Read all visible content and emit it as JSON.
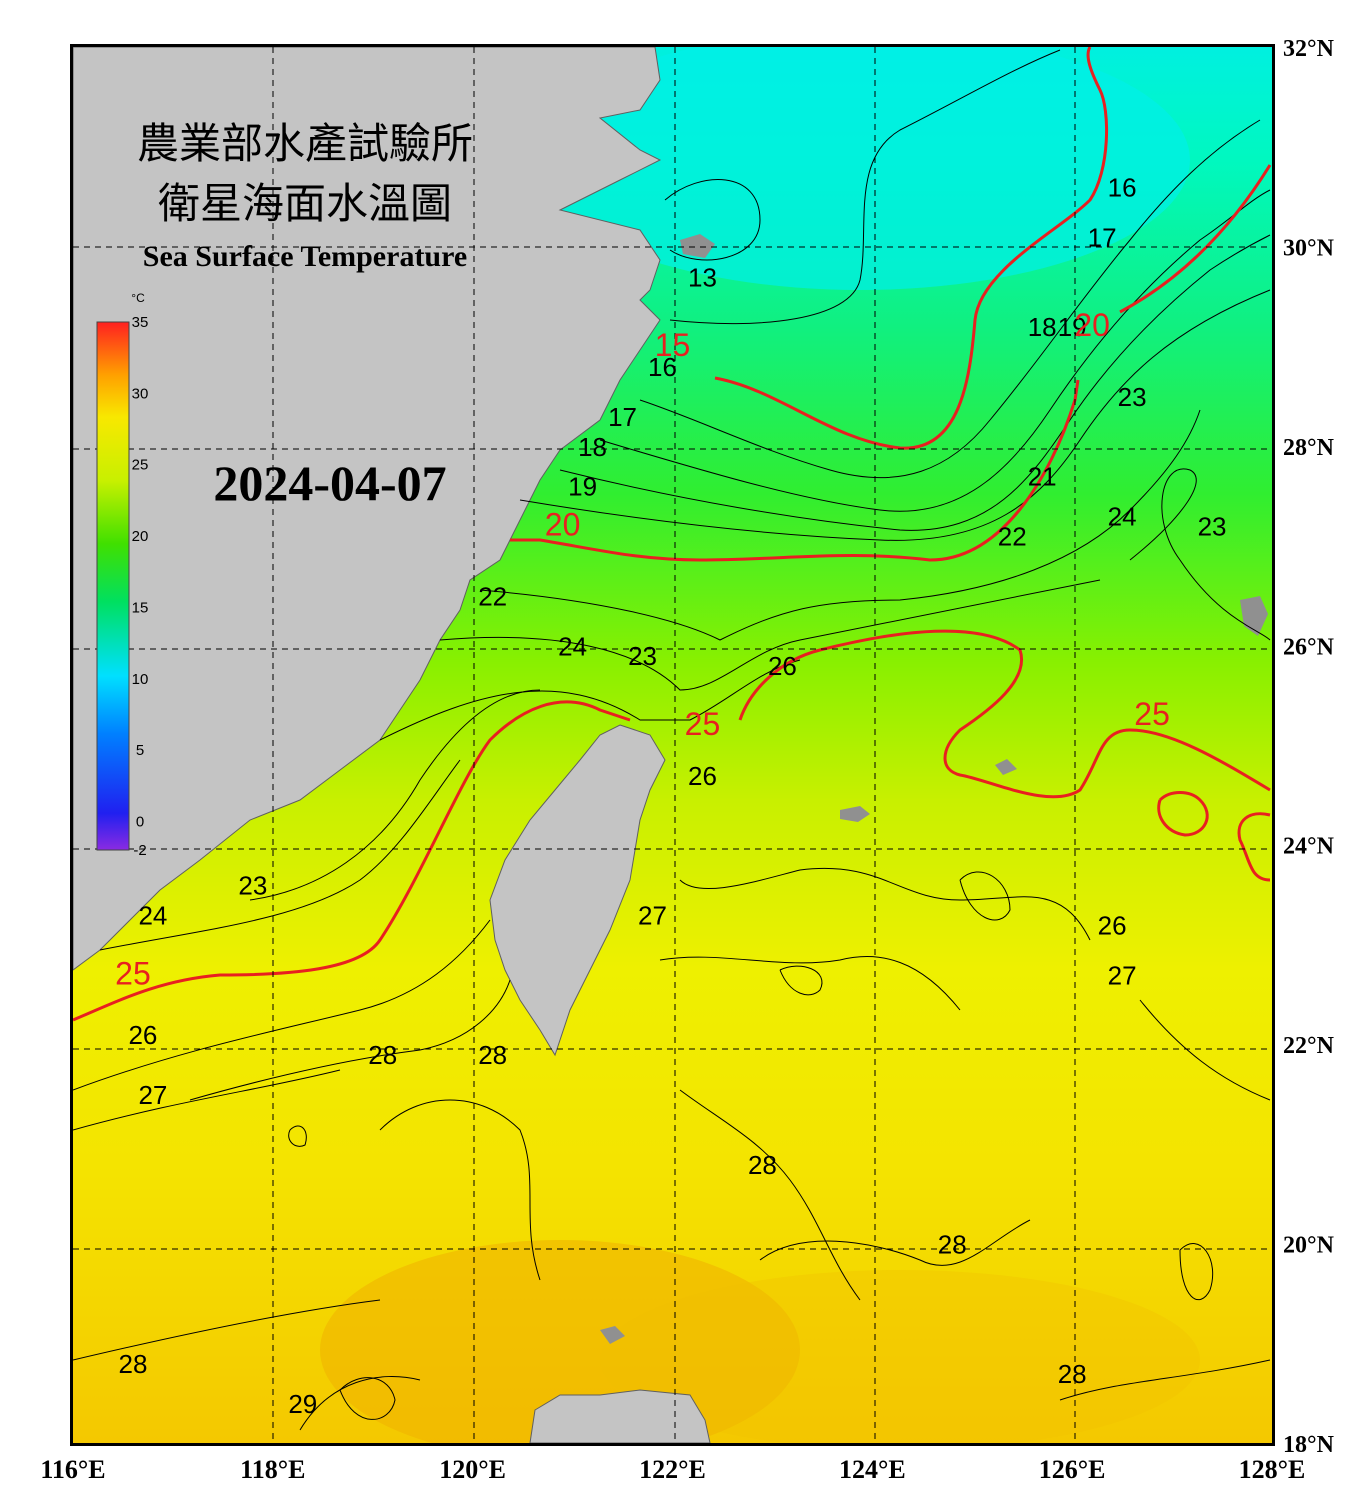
{
  "title": {
    "line1": "農業部水產試驗所",
    "line2": "衛星海面水溫圖",
    "english": "Sea Surface Temperature"
  },
  "date": "2024-04-07",
  "colorbar": {
    "unit": "°C",
    "ticks": [
      "35",
      "30",
      "25",
      "20",
      "15",
      "10",
      "5",
      "0",
      "-2"
    ]
  },
  "axes": {
    "longitude_labels": [
      "116°E",
      "118°E",
      "120°E",
      "122°E",
      "124°E",
      "126°E",
      "128°E"
    ],
    "latitude_labels": [
      "32°N",
      "30°N",
      "28°N",
      "26°N",
      "24°N",
      "22°N",
      "20°N",
      "18°N"
    ]
  },
  "contour_labels": {
    "black": [
      {
        "text": "13",
        "lon": 122.3,
        "lat": 29.6
      },
      {
        "text": "16",
        "lon": 121.9,
        "lat": 28.7
      },
      {
        "text": "17",
        "lon": 121.5,
        "lat": 28.2
      },
      {
        "text": "18",
        "lon": 121.2,
        "lat": 27.9
      },
      {
        "text": "19",
        "lon": 121.1,
        "lat": 27.5
      },
      {
        "text": "22",
        "lon": 120.2,
        "lat": 26.4
      },
      {
        "text": "24",
        "lon": 121.0,
        "lat": 25.9
      },
      {
        "text": "23",
        "lon": 121.7,
        "lat": 25.8
      },
      {
        "text": "26",
        "lon": 123.1,
        "lat": 25.7
      },
      {
        "text": "26",
        "lon": 122.3,
        "lat": 24.6
      },
      {
        "text": "27",
        "lon": 121.8,
        "lat": 23.2
      },
      {
        "text": "23",
        "lon": 117.8,
        "lat": 23.5
      },
      {
        "text": "24",
        "lon": 116.8,
        "lat": 23.2
      },
      {
        "text": "26",
        "lon": 116.7,
        "lat": 22.0
      },
      {
        "text": "27",
        "lon": 116.8,
        "lat": 21.4
      },
      {
        "text": "28",
        "lon": 119.1,
        "lat": 21.8
      },
      {
        "text": "28",
        "lon": 120.2,
        "lat": 21.8
      },
      {
        "text": "28",
        "lon": 122.9,
        "lat": 20.7
      },
      {
        "text": "28",
        "lon": 124.8,
        "lat": 19.9
      },
      {
        "text": "28",
        "lon": 116.6,
        "lat": 18.7
      },
      {
        "text": "29",
        "lon": 118.3,
        "lat": 18.3
      },
      {
        "text": "28",
        "lon": 126.0,
        "lat": 18.6
      },
      {
        "text": "16",
        "lon": 126.5,
        "lat": 30.5
      },
      {
        "text": "17",
        "lon": 126.3,
        "lat": 30.0
      },
      {
        "text": "18",
        "lon": 125.7,
        "lat": 29.1
      },
      {
        "text": "19",
        "lon": 126.0,
        "lat": 29.1
      },
      {
        "text": "23",
        "lon": 126.6,
        "lat": 28.4
      },
      {
        "text": "21",
        "lon": 125.7,
        "lat": 27.6
      },
      {
        "text": "22",
        "lon": 125.4,
        "lat": 27.0
      },
      {
        "text": "24",
        "lon": 126.5,
        "lat": 27.2
      },
      {
        "text": "23",
        "lon": 127.4,
        "lat": 27.1
      },
      {
        "text": "26",
        "lon": 126.4,
        "lat": 23.1
      },
      {
        "text": "27",
        "lon": 126.5,
        "lat": 22.6
      }
    ],
    "red": [
      {
        "text": "15",
        "lon": 122.0,
        "lat": 28.9
      },
      {
        "text": "20",
        "lon": 120.9,
        "lat": 27.1
      },
      {
        "text": "20",
        "lon": 126.2,
        "lat": 29.1
      },
      {
        "text": "25",
        "lon": 122.3,
        "lat": 25.1
      },
      {
        "text": "25",
        "lon": 126.8,
        "lat": 25.2
      },
      {
        "text": "25",
        "lon": 116.6,
        "lat": 22.6
      }
    ]
  }
}
